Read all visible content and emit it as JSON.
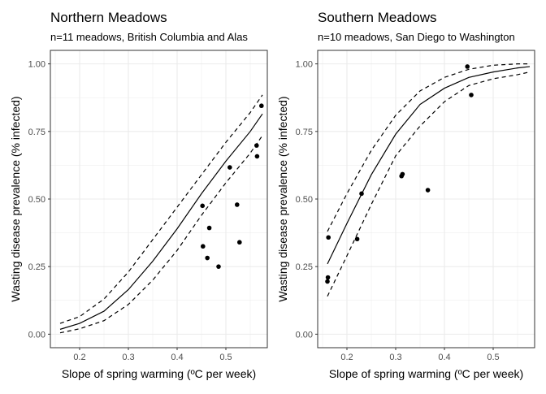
{
  "chart_data": [
    {
      "type": "scatter",
      "title": "Northern Meadows",
      "subtitle": "n=11 meadows, British Columbia and Alas",
      "xlabel": "Slope of spring warming (ºC per week)",
      "ylabel": "Wasting disease prevalence (% infected)",
      "xlim": [
        0.14,
        0.585
      ],
      "ylim": [
        -0.05,
        1.05
      ],
      "x_ticks": [
        0.2,
        0.3,
        0.4,
        0.5
      ],
      "x_tick_labels": [
        "0.2",
        "0.3",
        "0.4",
        "0.5"
      ],
      "y_ticks": [
        0,
        0.25,
        0.5,
        0.75,
        1.0
      ],
      "y_tick_labels": [
        "0.00",
        "0.25",
        "0.50",
        "0.75",
        "1.00"
      ],
      "grid": true,
      "points": [
        {
          "x": 0.452,
          "y": 0.475
        },
        {
          "x": 0.453,
          "y": 0.325
        },
        {
          "x": 0.462,
          "y": 0.282
        },
        {
          "x": 0.466,
          "y": 0.393
        },
        {
          "x": 0.485,
          "y": 0.25
        },
        {
          "x": 0.508,
          "y": 0.617
        },
        {
          "x": 0.523,
          "y": 0.479
        },
        {
          "x": 0.528,
          "y": 0.34
        },
        {
          "x": 0.563,
          "y": 0.698
        },
        {
          "x": 0.564,
          "y": 0.658
        },
        {
          "x": 0.573,
          "y": 0.845
        }
      ],
      "fit": {
        "x": [
          0.16,
          0.2,
          0.25,
          0.3,
          0.35,
          0.4,
          0.45,
          0.5,
          0.55,
          0.575
        ],
        "y": [
          0.018,
          0.04,
          0.085,
          0.165,
          0.27,
          0.39,
          0.52,
          0.64,
          0.75,
          0.815
        ]
      },
      "ci_upper": {
        "x": [
          0.16,
          0.2,
          0.25,
          0.3,
          0.35,
          0.4,
          0.45,
          0.5,
          0.55,
          0.575
        ],
        "y": [
          0.04,
          0.065,
          0.13,
          0.23,
          0.35,
          0.47,
          0.59,
          0.71,
          0.82,
          0.885
        ]
      },
      "ci_lower": {
        "x": [
          0.16,
          0.2,
          0.25,
          0.3,
          0.35,
          0.4,
          0.45,
          0.5,
          0.55,
          0.575
        ],
        "y": [
          0.005,
          0.02,
          0.05,
          0.11,
          0.2,
          0.31,
          0.44,
          0.56,
          0.67,
          0.735
        ]
      }
    },
    {
      "type": "scatter",
      "title": "Southern Meadows",
      "subtitle": "n=10 meadows, San Diego to Washington",
      "xlabel": "Slope of spring warming (ºC per week)",
      "ylabel": "Wasting disease prevalence (% infected)",
      "xlim": [
        0.14,
        0.585
      ],
      "ylim": [
        -0.05,
        1.05
      ],
      "x_ticks": [
        0.2,
        0.3,
        0.4,
        0.5
      ],
      "x_tick_labels": [
        "0.2",
        "0.3",
        "0.4",
        "0.5"
      ],
      "y_ticks": [
        0,
        0.25,
        0.5,
        0.75,
        1.0
      ],
      "y_tick_labels": [
        "0.00",
        "0.25",
        "0.50",
        "0.75",
        "1.00"
      ],
      "grid": true,
      "points": [
        {
          "x": 0.16,
          "y": 0.195
        },
        {
          "x": 0.161,
          "y": 0.21
        },
        {
          "x": 0.162,
          "y": 0.358
        },
        {
          "x": 0.221,
          "y": 0.352
        },
        {
          "x": 0.23,
          "y": 0.52
        },
        {
          "x": 0.312,
          "y": 0.585
        },
        {
          "x": 0.314,
          "y": 0.592
        },
        {
          "x": 0.366,
          "y": 0.533
        },
        {
          "x": 0.447,
          "y": 0.99
        },
        {
          "x": 0.455,
          "y": 0.885
        }
      ],
      "fit": {
        "x": [
          0.16,
          0.2,
          0.25,
          0.3,
          0.35,
          0.4,
          0.45,
          0.5,
          0.55,
          0.575
        ],
        "y": [
          0.26,
          0.41,
          0.59,
          0.74,
          0.85,
          0.91,
          0.95,
          0.97,
          0.985,
          0.99
        ]
      },
      "ci_upper": {
        "x": [
          0.16,
          0.2,
          0.25,
          0.3,
          0.35,
          0.4,
          0.45,
          0.5,
          0.55,
          0.575
        ],
        "y": [
          0.38,
          0.52,
          0.68,
          0.81,
          0.9,
          0.95,
          0.98,
          0.995,
          1.0,
          1.0
        ]
      },
      "ci_lower": {
        "x": [
          0.16,
          0.2,
          0.25,
          0.3,
          0.35,
          0.4,
          0.45,
          0.5,
          0.55,
          0.575
        ],
        "y": [
          0.14,
          0.29,
          0.48,
          0.66,
          0.77,
          0.86,
          0.92,
          0.945,
          0.96,
          0.97
        ]
      }
    }
  ]
}
